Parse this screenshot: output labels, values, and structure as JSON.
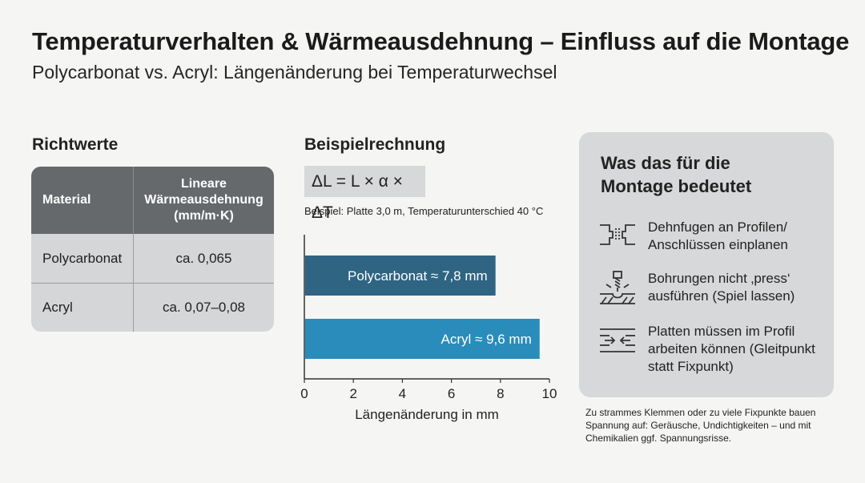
{
  "title": "Temperaturverhalten & Wärmeausdehnung – Einfluss auf die Montage",
  "subtitle": "Polycarbonat vs. Acryl: Längenänderung bei Temperaturwechsel",
  "richtwerte": {
    "heading": "Richtwerte",
    "columns": [
      "Material",
      "Lineare Wärmeausdehnung (mm/m·K)"
    ],
    "column2_lines": [
      "Lineare",
      "Wärmeausdehnung",
      "(mm/m·K)"
    ],
    "rows": [
      {
        "material": "Polycarbonat",
        "value": "ca. 0,065"
      },
      {
        "material": "Acryl",
        "value": "ca. 0,07–0,08"
      }
    ]
  },
  "beispiel": {
    "heading": "Beispielrechnung",
    "formula": "ΔL = L × α × ΔT",
    "example": "Beispiel: Platte 3,0 m, Temperaturunterschied 40 °C"
  },
  "chart_data": {
    "type": "bar",
    "orientation": "horizontal",
    "categories": [
      "Polycarbonat",
      "Acryl"
    ],
    "values": [
      7.8,
      9.6
    ],
    "bar_labels": [
      "Polycarbonat ≈ 7,8 mm",
      "Acryl ≈ 9,6 mm"
    ],
    "colors": [
      "#2f6483",
      "#2a8cba"
    ],
    "xlabel": "Längenänderung in mm",
    "xlim": [
      0,
      10
    ],
    "xticks": [
      "0",
      "2",
      "4",
      "6",
      "8",
      "10"
    ],
    "grid": false
  },
  "info": {
    "title_lines": [
      "Was das für die",
      "Montage bedeutet"
    ],
    "items": [
      {
        "icon": "expansion-joint-icon",
        "lines": [
          "Dehnfugen an Profilen/",
          "Anschlüssen einplanen"
        ]
      },
      {
        "icon": "drill-icon",
        "lines": [
          "Bohrungen nicht ‚press‘",
          "ausführen (Spiel lassen)"
        ]
      },
      {
        "icon": "sliding-panel-icon",
        "lines": [
          "Platten müssen im Profil",
          "arbeiten können (Gleitpunkt",
          "statt Fixpunkt)"
        ]
      }
    ]
  },
  "note": "Zu strammes Klemmen oder zu viele Fixpunkte bauen Spannung auf: Geräusche, Undichtigkeiten – und mit Chemikalien ggf. Spannungsrisse."
}
